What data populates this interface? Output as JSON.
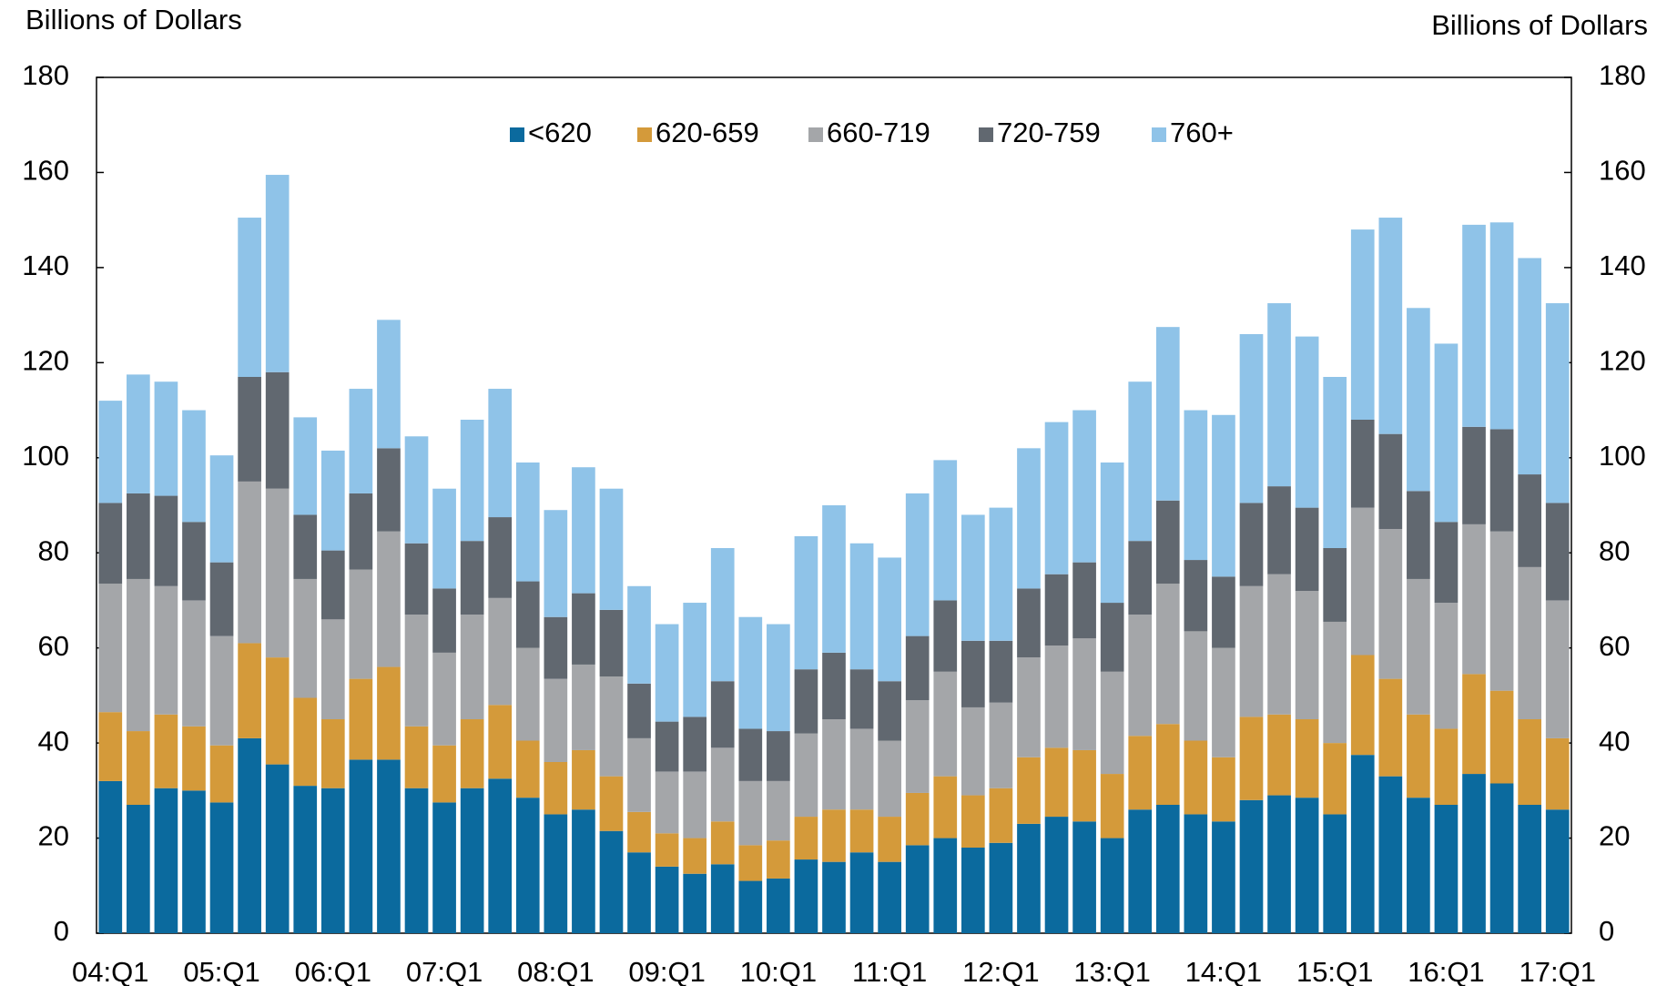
{
  "chart_data": {
    "type": "stacked_bar",
    "y_label": "Billions of Dollars",
    "y2_label": "Billions of Dollars",
    "categories": [
      "04:Q1",
      null,
      null,
      null,
      "05:Q1",
      null,
      null,
      null,
      "06:Q1",
      null,
      null,
      null,
      "07:Q1",
      null,
      null,
      null,
      "08:Q1",
      null,
      null,
      null,
      "09:Q1",
      null,
      null,
      null,
      "10:Q1",
      null,
      null,
      null,
      "11:Q1",
      null,
      null,
      null,
      "12:Q1",
      null,
      null,
      null,
      "13:Q1",
      null,
      null,
      null,
      "14:Q1",
      null,
      null,
      null,
      "15:Q1",
      null,
      null,
      null,
      "16:Q1",
      null,
      null,
      null,
      "17:Q1"
    ],
    "series": [
      {
        "name": "<620",
        "color": "#0b6a9e",
        "values": [
          32,
          27,
          30.5,
          30,
          27.5,
          41,
          35.5,
          31,
          30.5,
          36.5,
          36.5,
          30.5,
          27.5,
          30.5,
          32.5,
          28.5,
          25,
          26,
          21.5,
          17,
          14,
          12.5,
          14.5,
          11,
          11.5,
          15.5,
          15,
          17,
          15,
          18.5,
          20,
          18,
          19,
          23,
          24.5,
          23.5,
          20,
          26,
          27,
          25,
          23.5,
          28,
          29,
          28.5,
          25,
          37.5,
          33,
          28.5,
          27,
          33.5,
          31.5,
          27,
          26
        ]
      },
      {
        "name": "620-659",
        "color": "#d49a3a",
        "values": [
          14.5,
          15.5,
          15.5,
          13.5,
          12,
          20,
          22.5,
          18.5,
          14.5,
          17,
          19.5,
          13,
          12,
          14.5,
          15.5,
          12,
          11,
          12.5,
          11.5,
          8.5,
          7,
          7.5,
          9,
          7.5,
          8,
          9,
          11,
          9,
          9.5,
          11,
          13,
          11,
          11.5,
          14,
          14.5,
          15,
          13.5,
          15.5,
          17,
          15.5,
          13.5,
          17.5,
          17,
          16.5,
          15,
          21,
          20.5,
          17.5,
          16,
          21,
          19.5,
          18,
          15
        ]
      },
      {
        "name": "660-719",
        "color": "#a4a6a9",
        "values": [
          27,
          32,
          27,
          26.5,
          23,
          34,
          35.5,
          25,
          21,
          23,
          28.5,
          23.5,
          19.5,
          22,
          22.5,
          19.5,
          17.5,
          18,
          21,
          15.5,
          13,
          14,
          15.5,
          13.5,
          12.5,
          17.5,
          19,
          17,
          16,
          19.5,
          22,
          18.5,
          18,
          21,
          21.5,
          23.5,
          21.5,
          25.5,
          29.5,
          23,
          23,
          27.5,
          29.5,
          27,
          25.5,
          31,
          31.5,
          28.5,
          26.5,
          31.5,
          33.5,
          32,
          29
        ]
      },
      {
        "name": "720-759",
        "color": "#616870",
        "values": [
          17,
          18,
          19,
          16.5,
          15.5,
          22,
          24.5,
          13.5,
          14.5,
          16,
          17.5,
          15,
          13.5,
          15.5,
          17,
          14,
          13,
          15,
          14,
          11.5,
          10.5,
          11.5,
          14,
          11,
          10.5,
          13.5,
          14,
          12.5,
          12.5,
          13.5,
          15,
          14,
          13,
          14.5,
          15,
          16,
          14.5,
          15.5,
          17.5,
          15,
          15,
          17.5,
          18.5,
          17.5,
          15.5,
          18.5,
          20,
          18.5,
          17,
          20.5,
          21.5,
          19.5,
          20.5
        ]
      },
      {
        "name": "760+",
        "color": "#8fc3e8",
        "values": [
          21.5,
          25,
          24,
          23.5,
          22.5,
          33.5,
          41.5,
          20.5,
          21,
          22,
          27,
          22.5,
          21,
          25.5,
          27,
          25,
          22.5,
          26.5,
          25.5,
          20.5,
          20.5,
          24,
          28,
          23.5,
          22.5,
          28,
          31,
          26.5,
          26,
          30,
          29.5,
          26.5,
          28,
          29.5,
          32,
          32,
          29.5,
          33.5,
          36.5,
          31.5,
          34,
          35.5,
          38.5,
          36,
          36,
          40,
          45.5,
          38.5,
          37.5,
          42.5,
          43.5,
          45.5,
          42
        ]
      }
    ],
    "ylim": [
      0,
      180
    ],
    "yticks": [
      0,
      20,
      40,
      60,
      80,
      100,
      120,
      140,
      160,
      180
    ],
    "y2lim": [
      0,
      180
    ],
    "y2ticks": [
      0,
      20,
      40,
      60,
      80,
      100,
      120,
      140,
      160,
      180
    ],
    "legend": "top-center"
  }
}
